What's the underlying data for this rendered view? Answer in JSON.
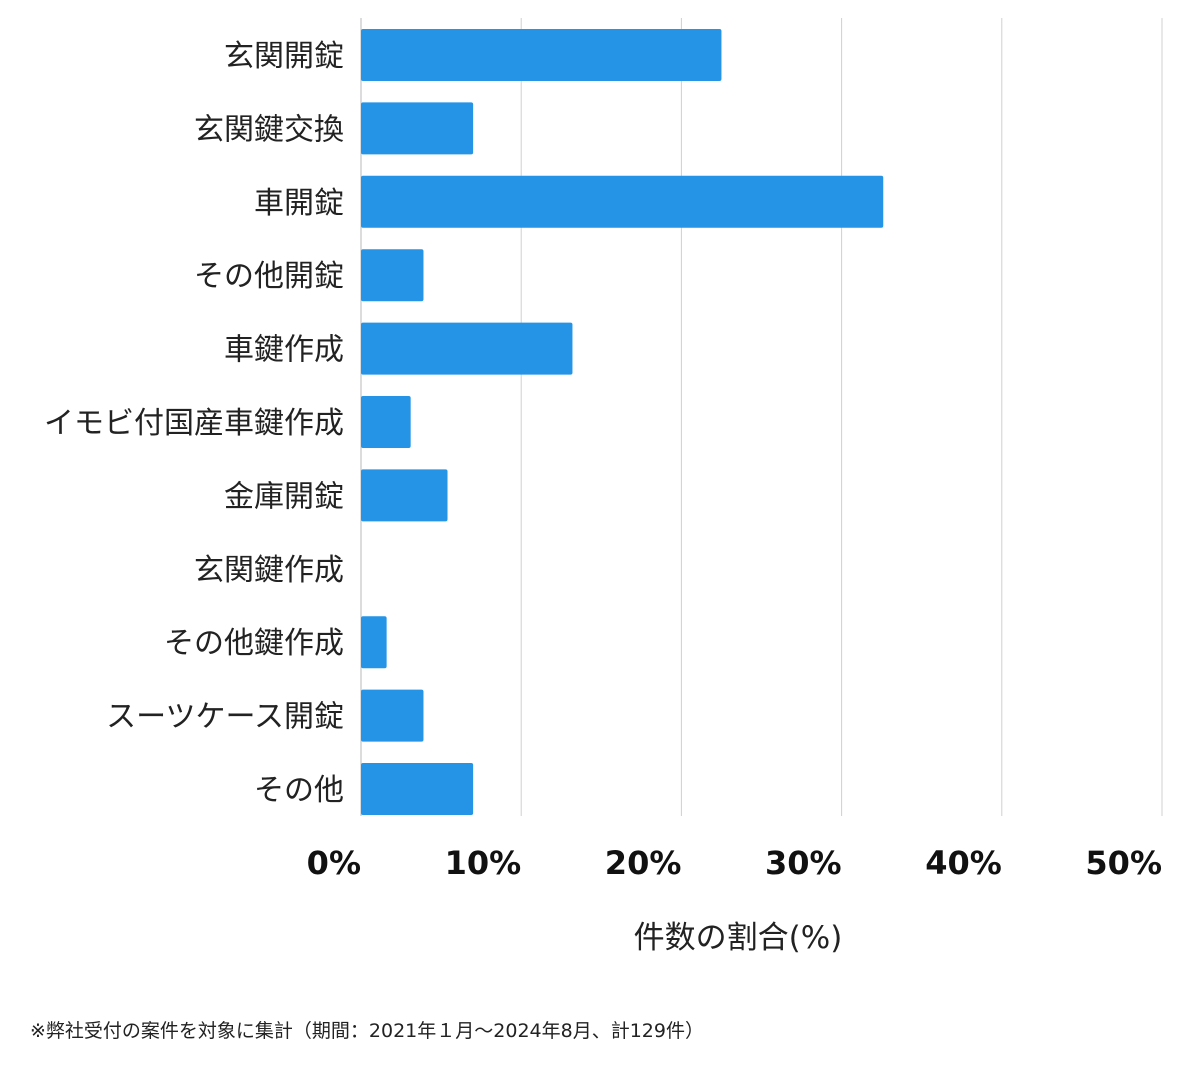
{
  "chart_data": {
    "type": "bar",
    "orientation": "horizontal",
    "categories": [
      "玄関開錠",
      "玄関鍵交換",
      "車開錠",
      "その他開錠",
      "車鍵作成",
      "イモビ付国産車鍵作成",
      "金庫開錠",
      "玄関鍵作成",
      "その他鍵作成",
      "スーツケース開錠",
      "その他"
    ],
    "values": [
      22.5,
      7.0,
      32.6,
      3.9,
      13.2,
      3.1,
      5.4,
      0,
      1.6,
      3.9,
      7.0
    ],
    "xlim": [
      0,
      50
    ],
    "xticks": [
      "0%",
      "10%",
      "20%",
      "30%",
      "40%",
      "50%"
    ],
    "xlabel": "件数の割合(%)",
    "ylabel": "",
    "grid": true,
    "bar_color": "#2594e6",
    "grid_color": "#d0d0d0"
  },
  "footnote": "※弊社受付の案件を対象に集計（期間：2021年１月〜2024年8月、計129件）"
}
